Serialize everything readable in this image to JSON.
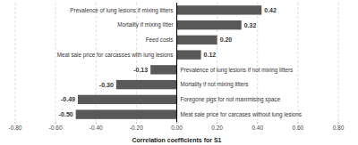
{
  "chart_data": {
    "type": "bar",
    "orientation": "horizontal",
    "categories": [
      "Prevalence of lung lesions if mixing litters",
      "Mortality if mixing litter",
      "Feed costs",
      "Meat sale price for carcasses with lung lesions",
      "Prevalence of lung lesions if not mixing litters",
      "Mortality if not mixing litters",
      "Foregone pigs for not maximising space",
      "Meat sale price for carcases without lung lesions"
    ],
    "values": [
      0.42,
      0.32,
      0.2,
      0.12,
      -0.13,
      -0.3,
      -0.49,
      -0.5
    ],
    "value_labels": [
      "0.42",
      "0.32",
      "0.20",
      "0.12",
      "-0.13",
      "-0.30",
      "-0.49",
      "-0.50"
    ],
    "data_labels": true,
    "color": "#595959",
    "xlabel": "Correlation coefficients for S1",
    "xlim": [
      -0.8,
      0.8
    ],
    "xticks": [
      {
        "value": -0.8,
        "label": "-0.80"
      },
      {
        "value": -0.6,
        "label": "-0.60"
      },
      {
        "value": -0.4,
        "label": "-0.40"
      },
      {
        "value": -0.2,
        "label": "-0.20"
      },
      {
        "value": 0,
        "label": "0.00"
      },
      {
        "value": 0.2,
        "label": "0.20"
      },
      {
        "value": 0.4,
        "label": "0.40"
      },
      {
        "value": 0.6,
        "label": "0.60"
      },
      {
        "value": 0.8,
        "label": "0.80"
      }
    ],
    "grid": true
  }
}
